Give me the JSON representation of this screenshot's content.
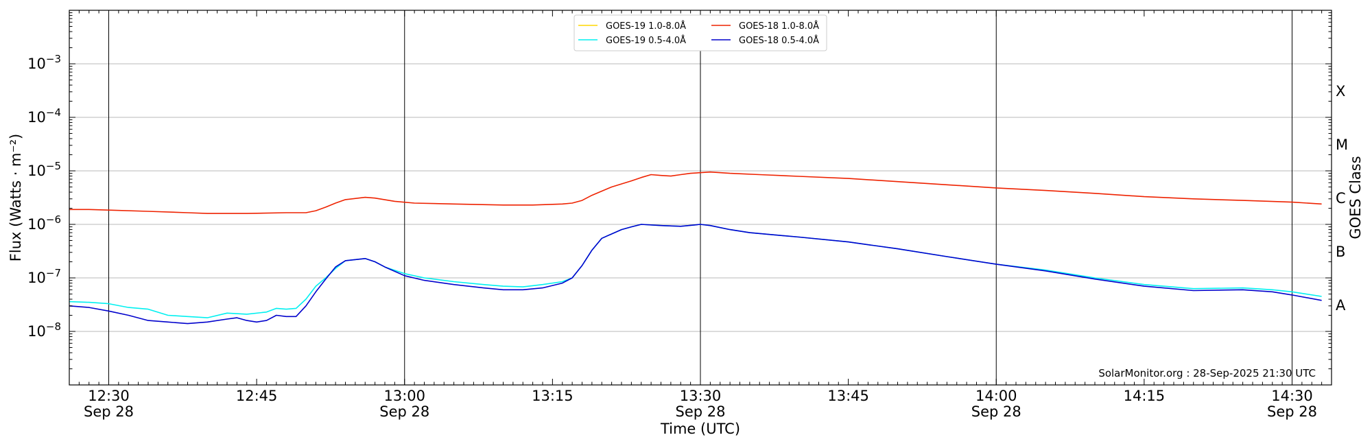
{
  "chart_data": {
    "type": "line",
    "title": "",
    "xlabel": "Time (UTC)",
    "ylabel": "Flux (Watts · m⁻²)",
    "y2label": "GOES Class",
    "y_scale": "log",
    "ylim": [
      1e-09,
      0.01
    ],
    "xlim": [
      "12:26",
      "14:34"
    ],
    "grid": "horizontal",
    "legend_placement": "top-center",
    "watermark": "SolarMonitor.org : 28-Sep-2025 21:30 UTC",
    "y_ticks": [
      {
        "value": 1e-08,
        "base": "10",
        "exp": "−8"
      },
      {
        "value": 1e-07,
        "base": "10",
        "exp": "−7"
      },
      {
        "value": 1e-06,
        "base": "10",
        "exp": "−6"
      },
      {
        "value": 1e-05,
        "base": "10",
        "exp": "−5"
      },
      {
        "value": 0.0001,
        "base": "10",
        "exp": "−4"
      },
      {
        "value": 0.001,
        "base": "10",
        "exp": "−3"
      }
    ],
    "x_ticks": [
      {
        "time": "12:30",
        "label": "12:30",
        "date": "Sep 28"
      },
      {
        "time": "12:45",
        "label": "12:45",
        "date": ""
      },
      {
        "time": "13:00",
        "label": "13:00",
        "date": "Sep 28"
      },
      {
        "time": "13:15",
        "label": "13:15",
        "date": ""
      },
      {
        "time": "13:30",
        "label": "13:30",
        "date": "Sep 28"
      },
      {
        "time": "13:45",
        "label": "13:45",
        "date": ""
      },
      {
        "time": "14:00",
        "label": "14:00",
        "date": "Sep 28"
      },
      {
        "time": "14:15",
        "label": "14:15",
        "date": ""
      },
      {
        "time": "14:30",
        "label": "14:30",
        "date": "Sep 28"
      }
    ],
    "goes_classes": [
      {
        "label": "A",
        "value": 3.16e-08
      },
      {
        "label": "B",
        "value": 3.16e-07
      },
      {
        "label": "C",
        "value": 3.16e-06
      },
      {
        "label": "M",
        "value": 3.16e-05
      },
      {
        "label": "X",
        "value": 0.000316
      }
    ],
    "series": [
      {
        "name": "GOES-19 1.0-8.0Å",
        "color": "#ffd700",
        "points": []
      },
      {
        "name": "GOES-18 1.0-8.0Å",
        "color": "#ee2200",
        "points": [
          [
            "12:26",
            1.9e-06
          ],
          [
            "12:28",
            1.9e-06
          ],
          [
            "12:30",
            1.85e-06
          ],
          [
            "12:34",
            1.75e-06
          ],
          [
            "12:38",
            1.65e-06
          ],
          [
            "12:40",
            1.6e-06
          ],
          [
            "12:44",
            1.6e-06
          ],
          [
            "12:48",
            1.65e-06
          ],
          [
            "12:50",
            1.65e-06
          ],
          [
            "12:51",
            1.8e-06
          ],
          [
            "12:52",
            2.1e-06
          ],
          [
            "12:53",
            2.5e-06
          ],
          [
            "12:54",
            2.9e-06
          ],
          [
            "12:56",
            3.2e-06
          ],
          [
            "12:57",
            3.1e-06
          ],
          [
            "12:59",
            2.7e-06
          ],
          [
            "13:01",
            2.5e-06
          ],
          [
            "13:05",
            2.4e-06
          ],
          [
            "13:10",
            2.3e-06
          ],
          [
            "13:13",
            2.3e-06
          ],
          [
            "13:16",
            2.4e-06
          ],
          [
            "13:17",
            2.5e-06
          ],
          [
            "13:18",
            2.8e-06
          ],
          [
            "13:19",
            3.5e-06
          ],
          [
            "13:21",
            5e-06
          ],
          [
            "13:23",
            6.5e-06
          ],
          [
            "13:24",
            7.5e-06
          ],
          [
            "13:25",
            8.5e-06
          ],
          [
            "13:26",
            8.2e-06
          ],
          [
            "13:27",
            8e-06
          ],
          [
            "13:28",
            8.5e-06
          ],
          [
            "13:29",
            9e-06
          ],
          [
            "13:31",
            9.5e-06
          ],
          [
            "13:33",
            9e-06
          ],
          [
            "13:36",
            8.5e-06
          ],
          [
            "13:40",
            7.9e-06
          ],
          [
            "13:45",
            7.2e-06
          ],
          [
            "13:50",
            6.3e-06
          ],
          [
            "13:55",
            5.5e-06
          ],
          [
            "14:00",
            4.8e-06
          ],
          [
            "14:05",
            4.3e-06
          ],
          [
            "14:10",
            3.8e-06
          ],
          [
            "14:15",
            3.3e-06
          ],
          [
            "14:20",
            3e-06
          ],
          [
            "14:25",
            2.8e-06
          ],
          [
            "14:30",
            2.6e-06
          ],
          [
            "14:33",
            2.4e-06
          ]
        ]
      },
      {
        "name": "GOES-19 0.5-4.0Å",
        "color": "#00f0f0",
        "points": [
          [
            "12:26",
            3.6e-08
          ],
          [
            "12:28",
            3.5e-08
          ],
          [
            "12:30",
            3.3e-08
          ],
          [
            "12:32",
            2.8e-08
          ],
          [
            "12:34",
            2.6e-08
          ],
          [
            "12:36",
            2e-08
          ],
          [
            "12:38",
            1.9e-08
          ],
          [
            "12:40",
            1.8e-08
          ],
          [
            "12:42",
            2.2e-08
          ],
          [
            "12:44",
            2.1e-08
          ],
          [
            "12:46",
            2.3e-08
          ],
          [
            "12:47",
            2.7e-08
          ],
          [
            "12:48",
            2.6e-08
          ],
          [
            "12:49",
            2.7e-08
          ],
          [
            "12:50",
            4e-08
          ],
          [
            "12:51",
            7e-08
          ],
          [
            "12:52",
            1e-07
          ],
          [
            "12:53",
            1.5e-07
          ],
          [
            "12:54",
            2.1e-07
          ],
          [
            "12:56",
            2.3e-07
          ],
          [
            "12:57",
            2e-07
          ],
          [
            "12:58",
            1.6e-07
          ],
          [
            "13:00",
            1.2e-07
          ],
          [
            "13:02",
            1e-07
          ],
          [
            "13:05",
            8.5e-08
          ],
          [
            "13:08",
            7.5e-08
          ],
          [
            "13:10",
            7e-08
          ],
          [
            "13:12",
            6.8e-08
          ],
          [
            "13:14",
            7.5e-08
          ],
          [
            "13:16",
            8.5e-08
          ],
          [
            "13:17",
            1e-07
          ],
          [
            "13:18",
            1.7e-07
          ],
          [
            "13:19",
            3.3e-07
          ],
          [
            "13:20",
            5.5e-07
          ],
          [
            "13:22",
            8e-07
          ],
          [
            "13:23",
            9e-07
          ],
          [
            "13:24",
            1e-06
          ],
          [
            "13:26",
            9.5e-07
          ],
          [
            "13:28",
            9.2e-07
          ],
          [
            "13:30",
            1e-06
          ],
          [
            "13:31",
            9.5e-07
          ],
          [
            "13:33",
            8e-07
          ],
          [
            "13:35",
            7e-07
          ],
          [
            "13:40",
            5.8e-07
          ],
          [
            "13:45",
            4.7e-07
          ],
          [
            "13:50",
            3.5e-07
          ],
          [
            "13:55",
            2.5e-07
          ],
          [
            "14:00",
            1.8e-07
          ],
          [
            "14:05",
            1.4e-07
          ],
          [
            "14:10",
            1e-07
          ],
          [
            "14:15",
            7.5e-08
          ],
          [
            "14:20",
            6.3e-08
          ],
          [
            "14:25",
            6.5e-08
          ],
          [
            "14:28",
            6e-08
          ],
          [
            "14:30",
            5.5e-08
          ],
          [
            "14:33",
            4.5e-08
          ]
        ]
      },
      {
        "name": "GOES-18 0.5-4.0Å",
        "color": "#0000cc",
        "points": [
          [
            "12:26",
            3e-08
          ],
          [
            "12:28",
            2.8e-08
          ],
          [
            "12:30",
            2.4e-08
          ],
          [
            "12:32",
            2e-08
          ],
          [
            "12:34",
            1.6e-08
          ],
          [
            "12:36",
            1.5e-08
          ],
          [
            "12:38",
            1.4e-08
          ],
          [
            "12:40",
            1.5e-08
          ],
          [
            "12:42",
            1.7e-08
          ],
          [
            "12:43",
            1.8e-08
          ],
          [
            "12:44",
            1.6e-08
          ],
          [
            "12:45",
            1.5e-08
          ],
          [
            "12:46",
            1.6e-08
          ],
          [
            "12:47",
            2e-08
          ],
          [
            "12:48",
            1.9e-08
          ],
          [
            "12:49",
            1.9e-08
          ],
          [
            "12:50",
            3e-08
          ],
          [
            "12:51",
            5.5e-08
          ],
          [
            "12:52",
            9.5e-08
          ],
          [
            "12:53",
            1.6e-07
          ],
          [
            "12:54",
            2.1e-07
          ],
          [
            "12:56",
            2.3e-07
          ],
          [
            "12:57",
            2e-07
          ],
          [
            "12:58",
            1.6e-07
          ],
          [
            "13:00",
            1.1e-07
          ],
          [
            "13:02",
            9e-08
          ],
          [
            "13:05",
            7.5e-08
          ],
          [
            "13:08",
            6.5e-08
          ],
          [
            "13:10",
            6e-08
          ],
          [
            "13:12",
            6e-08
          ],
          [
            "13:14",
            6.5e-08
          ],
          [
            "13:16",
            8e-08
          ],
          [
            "13:17",
            1e-07
          ],
          [
            "13:18",
            1.7e-07
          ],
          [
            "13:19",
            3.3e-07
          ],
          [
            "13:20",
            5.5e-07
          ],
          [
            "13:22",
            8e-07
          ],
          [
            "13:23",
            9e-07
          ],
          [
            "13:24",
            1e-06
          ],
          [
            "13:26",
            9.5e-07
          ],
          [
            "13:28",
            9.2e-07
          ],
          [
            "13:30",
            1e-06
          ],
          [
            "13:31",
            9.5e-07
          ],
          [
            "13:33",
            8e-07
          ],
          [
            "13:35",
            7e-07
          ],
          [
            "13:40",
            5.8e-07
          ],
          [
            "13:45",
            4.7e-07
          ],
          [
            "13:50",
            3.5e-07
          ],
          [
            "13:55",
            2.5e-07
          ],
          [
            "14:00",
            1.8e-07
          ],
          [
            "14:05",
            1.35e-07
          ],
          [
            "14:10",
            9.5e-08
          ],
          [
            "14:15",
            7e-08
          ],
          [
            "14:20",
            5.8e-08
          ],
          [
            "14:25",
            6e-08
          ],
          [
            "14:28",
            5.5e-08
          ],
          [
            "14:30",
            4.8e-08
          ],
          [
            "14:33",
            3.8e-08
          ]
        ]
      }
    ]
  }
}
